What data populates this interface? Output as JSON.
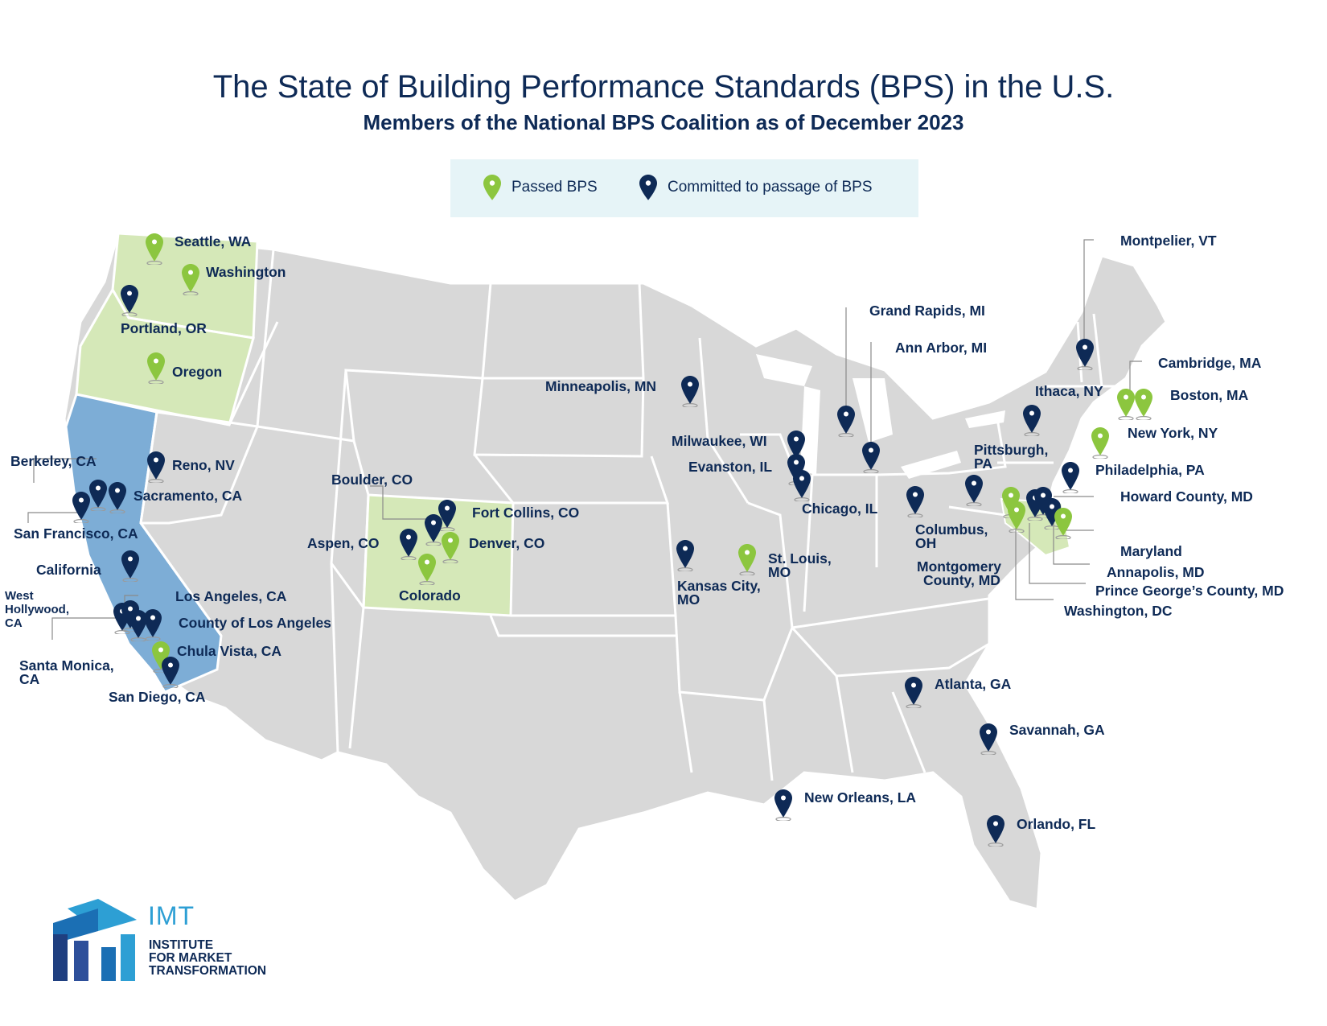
{
  "title": "The State of Building Performance Standards (BPS) in the U.S.",
  "subtitle": "Members of the National BPS Coalition as of December 2023",
  "legend": {
    "passed_label": "Passed BPS",
    "committed_label": "Committed to passage of BPS"
  },
  "colors": {
    "passed": "#8cc63f",
    "committed": "#0e2a56",
    "state_passed_fill": "#d5e8b8",
    "state_committed_fill": "#7dadd6",
    "land": "#d8d8d8",
    "border": "#ffffff",
    "legend_bg": "#e6f4f7",
    "text": "#0e2a56"
  },
  "highlighted_states": {
    "passed": [
      "Washington",
      "Oregon",
      "Colorado",
      "Maryland"
    ],
    "committed": [
      "California"
    ]
  },
  "members": [
    {
      "label": "Seattle, WA",
      "status": "passed"
    },
    {
      "label": "Washington",
      "status": "passed"
    },
    {
      "label": "Portland, OR",
      "status": "committed"
    },
    {
      "label": "Oregon",
      "status": "passed"
    },
    {
      "label": "Berkeley, CA",
      "status": "committed"
    },
    {
      "label": "Sacramento, CA",
      "status": "committed"
    },
    {
      "label": "San Francisco, CA",
      "status": "committed"
    },
    {
      "label": "Reno, NV",
      "status": "committed"
    },
    {
      "label": "California",
      "status": "committed"
    },
    {
      "label": "West Hollywood, CA",
      "status": "committed"
    },
    {
      "label": "Los Angeles, CA",
      "status": "committed"
    },
    {
      "label": "County of Los Angeles",
      "status": "committed"
    },
    {
      "label": "Santa Monica, CA",
      "status": "committed"
    },
    {
      "label": "Chula Vista, CA",
      "status": "passed"
    },
    {
      "label": "San Diego, CA",
      "status": "committed"
    },
    {
      "label": "Boulder, CO",
      "status": "committed"
    },
    {
      "label": "Fort Collins, CO",
      "status": "committed"
    },
    {
      "label": "Aspen, CO",
      "status": "committed"
    },
    {
      "label": "Denver, CO",
      "status": "passed"
    },
    {
      "label": "Colorado",
      "status": "passed"
    },
    {
      "label": "Minneapolis, MN",
      "status": "committed"
    },
    {
      "label": "Kansas City, MO",
      "status": "committed"
    },
    {
      "label": "St. Louis, MO",
      "status": "passed"
    },
    {
      "label": "Milwaukee, WI",
      "status": "committed"
    },
    {
      "label": "Evanston, IL",
      "status": "committed"
    },
    {
      "label": "Chicago, IL",
      "status": "committed"
    },
    {
      "label": "Grand Rapids, MI",
      "status": "committed"
    },
    {
      "label": "Ann Arbor, MI",
      "status": "committed"
    },
    {
      "label": "Columbus, OH",
      "status": "committed"
    },
    {
      "label": "Pittsburgh, PA",
      "status": "committed"
    },
    {
      "label": "Montgomery County, MD",
      "status": "passed"
    },
    {
      "label": "Montpelier, VT",
      "status": "committed"
    },
    {
      "label": "Ithaca, NY",
      "status": "committed"
    },
    {
      "label": "Cambridge, MA",
      "status": "passed"
    },
    {
      "label": "Boston, MA",
      "status": "passed"
    },
    {
      "label": "New York, NY",
      "status": "passed"
    },
    {
      "label": "Philadelphia, PA",
      "status": "committed"
    },
    {
      "label": "Howard County, MD",
      "status": "committed"
    },
    {
      "label": "Maryland",
      "status": "passed"
    },
    {
      "label": "Annapolis, MD",
      "status": "committed"
    },
    {
      "label": "Prince George’s County, MD",
      "status": "committed"
    },
    {
      "label": "Washington, DC",
      "status": "passed"
    },
    {
      "label": "Atlanta, GA",
      "status": "committed"
    },
    {
      "label": "Savannah, GA",
      "status": "committed"
    },
    {
      "label": "New Orleans, LA",
      "status": "committed"
    },
    {
      "label": "Orlando, FL",
      "status": "committed"
    }
  ],
  "label_text": {
    "west_hollywood": [
      "West",
      "Hollywood,",
      "CA"
    ],
    "santa_monica": [
      "Santa Monica,",
      "CA"
    ],
    "kansas_city": [
      "Kansas City,",
      "MO"
    ],
    "st_louis": [
      "St. Louis,",
      "MO"
    ],
    "columbus": [
      "Columbus,",
      "OH"
    ],
    "pittsburgh": [
      "Pittsburgh,",
      "PA"
    ],
    "montgomery": [
      "Montgomery",
      "County, MD"
    ]
  },
  "logo": {
    "abbr": "IMT",
    "lines": [
      "INSTITUTE",
      "FOR MARKET",
      "TRANSFORMATION"
    ],
    "icon": "imt-logo-mark"
  }
}
